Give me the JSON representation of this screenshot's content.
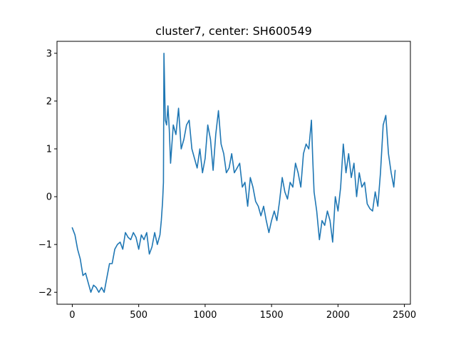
{
  "chart_data": {
    "type": "line",
    "title": "cluster7, center: SH600549",
    "xlabel": "",
    "ylabel": "",
    "xlim": [
      -115,
      2545
    ],
    "ylim": [
      -2.25,
      3.25
    ],
    "x_ticks": [
      0,
      500,
      1000,
      1500,
      2000,
      2500
    ],
    "y_ticks": [
      3,
      2,
      1,
      0,
      -1,
      -2
    ],
    "x_tick_labels": [
      "0",
      "500",
      "1000",
      "1500",
      "2000",
      "2500"
    ],
    "y_tick_labels": [
      "3",
      "2",
      "1",
      "0",
      "−1",
      "−2"
    ],
    "grid": false,
    "series": [
      {
        "color": "#1f77b4",
        "x": [
          0,
          20,
          40,
          60,
          80,
          100,
          120,
          140,
          160,
          180,
          200,
          220,
          240,
          260,
          280,
          300,
          320,
          340,
          360,
          380,
          400,
          420,
          440,
          460,
          480,
          500,
          520,
          540,
          560,
          580,
          600,
          620,
          640,
          660,
          670,
          680,
          686,
          690,
          700,
          710,
          720,
          730,
          740,
          760,
          780,
          800,
          820,
          840,
          860,
          880,
          900,
          920,
          940,
          960,
          980,
          1000,
          1020,
          1040,
          1060,
          1080,
          1100,
          1120,
          1140,
          1160,
          1180,
          1200,
          1220,
          1240,
          1260,
          1280,
          1300,
          1320,
          1340,
          1360,
          1380,
          1400,
          1420,
          1440,
          1460,
          1480,
          1500,
          1520,
          1540,
          1560,
          1580,
          1600,
          1620,
          1640,
          1660,
          1680,
          1700,
          1720,
          1740,
          1760,
          1780,
          1800,
          1810,
          1820,
          1840,
          1860,
          1880,
          1900,
          1920,
          1940,
          1960,
          1980,
          2000,
          2020,
          2040,
          2060,
          2080,
          2100,
          2120,
          2140,
          2160,
          2180,
          2200,
          2220,
          2240,
          2260,
          2280,
          2300,
          2320,
          2340,
          2360,
          2380,
          2400,
          2420,
          2430
        ],
        "y": [
          -0.65,
          -0.8,
          -1.1,
          -1.3,
          -1.65,
          -1.6,
          -1.8,
          -2.0,
          -1.85,
          -1.9,
          -2.0,
          -1.9,
          -2.0,
          -1.7,
          -1.4,
          -1.4,
          -1.1,
          -1.0,
          -0.95,
          -1.1,
          -0.75,
          -0.85,
          -0.9,
          -0.75,
          -0.85,
          -1.1,
          -0.8,
          -0.9,
          -0.75,
          -1.2,
          -1.05,
          -0.75,
          -1.0,
          -0.8,
          -0.5,
          -0.1,
          0.3,
          3.0,
          1.6,
          1.5,
          1.9,
          1.4,
          0.7,
          1.5,
          1.3,
          1.85,
          1.0,
          1.2,
          1.5,
          1.6,
          1.0,
          0.8,
          0.6,
          1.0,
          0.5,
          0.8,
          1.5,
          1.2,
          0.55,
          1.3,
          1.8,
          1.1,
          0.9,
          0.5,
          0.6,
          0.9,
          0.5,
          0.6,
          0.7,
          0.2,
          0.3,
          -0.2,
          0.4,
          0.2,
          -0.1,
          -0.2,
          -0.4,
          -0.2,
          -0.5,
          -0.75,
          -0.5,
          -0.3,
          -0.5,
          -0.1,
          0.4,
          0.1,
          -0.05,
          0.3,
          0.2,
          0.7,
          0.5,
          0.2,
          0.9,
          1.1,
          1.0,
          1.6,
          0.8,
          0.1,
          -0.3,
          -0.9,
          -0.5,
          -0.6,
          -0.3,
          -0.5,
          -0.95,
          0.0,
          -0.3,
          0.2,
          1.1,
          0.5,
          0.9,
          0.4,
          0.7,
          0.0,
          0.5,
          0.2,
          0.3,
          -0.15,
          -0.25,
          -0.3,
          0.1,
          -0.2,
          0.5,
          1.5,
          1.7,
          0.9,
          0.5,
          0.2,
          0.55
        ]
      }
    ]
  }
}
